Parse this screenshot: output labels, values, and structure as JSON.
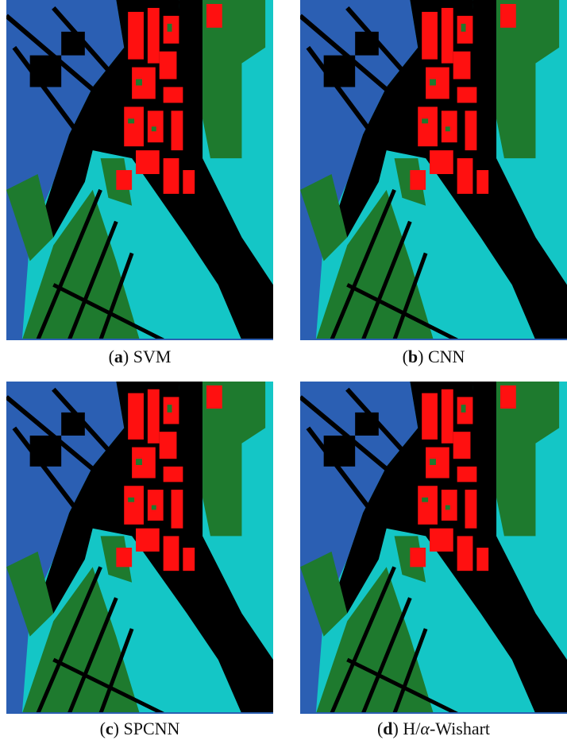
{
  "panels": [
    {
      "caption": [
        {
          "text": "(",
          "style": "normal"
        },
        {
          "text": "a",
          "style": "bold"
        },
        {
          "text": ") SVM",
          "style": "normal"
        }
      ]
    },
    {
      "caption": [
        {
          "text": "(",
          "style": "normal"
        },
        {
          "text": "b",
          "style": "bold"
        },
        {
          "text": ") CNN",
          "style": "normal"
        }
      ]
    },
    {
      "caption": [
        {
          "text": "(",
          "style": "normal"
        },
        {
          "text": "c",
          "style": "bold"
        },
        {
          "text": ") SPCNN",
          "style": "normal"
        }
      ]
    },
    {
      "caption": [
        {
          "text": "(",
          "style": "normal"
        },
        {
          "text": "d",
          "style": "bold"
        },
        {
          "text": ") H/",
          "style": "normal"
        },
        {
          "text": "α",
          "style": "italic"
        },
        {
          "text": "-Wishart",
          "style": "normal"
        }
      ]
    }
  ]
}
